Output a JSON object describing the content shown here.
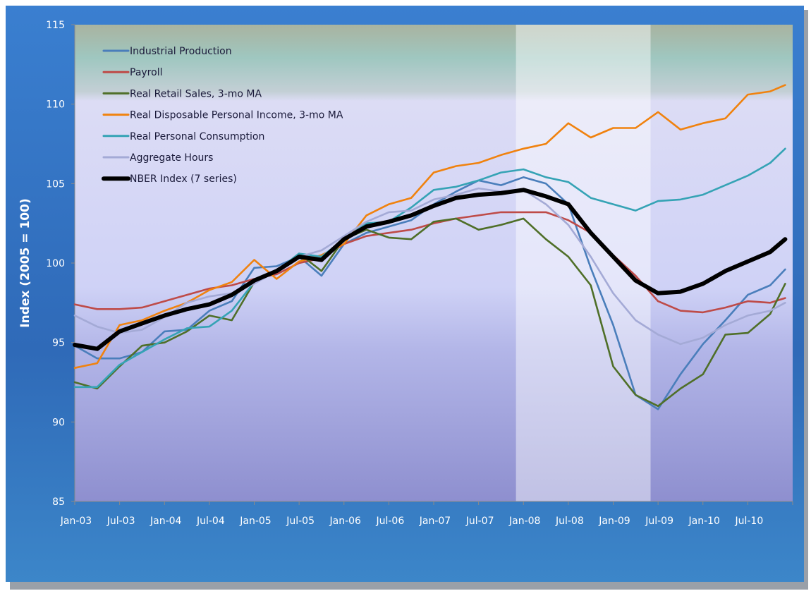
{
  "chart_data": {
    "type": "line",
    "title": "",
    "xlabel": "",
    "ylabel": "Index (2005 = 100)",
    "ylim": [
      85,
      115
    ],
    "yticks": [
      "85",
      "90",
      "95",
      "100",
      "105",
      "110",
      "115"
    ],
    "xlim": [
      "Jan-03",
      "Jan-11"
    ],
    "xtick_labels": [
      "Jan-03",
      "Jul-03",
      "Jan-04",
      "Jul-04",
      "Jan-05",
      "Jul-05",
      "Jan-06",
      "Jul-06",
      "Jan-07",
      "Jul-07",
      "Jan-08",
      "Jul-08",
      "Jan-09",
      "Jul-09",
      "Jan-10",
      "Jul-10"
    ],
    "grid": false,
    "legend_position": "top-left",
    "recession_shading": {
      "start": "Dec-07",
      "end": "Jun-09"
    },
    "x": [
      "Jan-03",
      "Apr-03",
      "Jul-03",
      "Oct-03",
      "Jan-04",
      "Apr-04",
      "Jul-04",
      "Oct-04",
      "Jan-05",
      "Apr-05",
      "Jul-05",
      "Oct-05",
      "Jan-06",
      "Apr-06",
      "Jul-06",
      "Oct-06",
      "Jan-07",
      "Apr-07",
      "Jul-07",
      "Oct-07",
      "Jan-08",
      "Apr-08",
      "Jul-08",
      "Oct-08",
      "Jan-09",
      "Apr-09",
      "Jul-09",
      "Oct-09",
      "Jan-10",
      "Apr-10",
      "Jul-10",
      "Oct-10",
      "Dec-10"
    ],
    "series": [
      {
        "name": "Industrial Production",
        "color": "#4a7ebb",
        "values": [
          94.8,
          94.0,
          94.0,
          94.4,
          95.7,
          95.8,
          97.0,
          97.6,
          99.7,
          99.8,
          100.4,
          99.2,
          101.2,
          101.9,
          102.3,
          102.7,
          103.7,
          104.5,
          105.2,
          104.9,
          105.4,
          105.0,
          103.7,
          99.7,
          96.1,
          91.7,
          90.8,
          93.0,
          94.9,
          96.4,
          98.0,
          98.6,
          99.6
        ]
      },
      {
        "name": "Payroll",
        "color": "#be4b48",
        "values": [
          97.4,
          97.1,
          97.1,
          97.2,
          97.6,
          98.0,
          98.4,
          98.6,
          99.0,
          99.3,
          100.0,
          100.3,
          101.2,
          101.7,
          101.9,
          102.1,
          102.5,
          102.8,
          103.0,
          103.2,
          103.2,
          103.2,
          102.7,
          101.9,
          100.5,
          99.2,
          97.6,
          97.0,
          96.9,
          97.2,
          97.6,
          97.5,
          97.8
        ]
      },
      {
        "name": "Real Retail Sales, 3-mo MA",
        "color": "#4f6f28",
        "values": [
          92.5,
          92.1,
          93.5,
          94.8,
          95.0,
          95.7,
          96.7,
          96.4,
          98.8,
          99.5,
          100.6,
          99.5,
          101.5,
          102.1,
          101.6,
          101.5,
          102.6,
          102.8,
          102.1,
          102.4,
          102.8,
          101.5,
          100.4,
          98.6,
          93.5,
          91.7,
          91.0,
          92.1,
          93.0,
          95.5,
          95.6,
          96.8,
          98.7
        ]
      },
      {
        "name": "Real Disposable Personal Income, 3-mo MA",
        "color": "#f0820e",
        "values": [
          93.4,
          93.7,
          96.1,
          96.4,
          97.0,
          97.5,
          98.3,
          98.8,
          100.2,
          99.0,
          100.1,
          100.5,
          101.2,
          103.0,
          103.7,
          104.1,
          105.7,
          106.1,
          106.3,
          106.8,
          107.2,
          107.5,
          108.8,
          107.9,
          108.5,
          108.5,
          109.5,
          108.4,
          108.8,
          109.1,
          110.6,
          110.8,
          111.2
        ]
      },
      {
        "name": "Real Personal Consumption",
        "color": "#35a3b5",
        "values": [
          92.2,
          92.2,
          93.6,
          94.4,
          95.2,
          95.9,
          96.0,
          97.0,
          98.8,
          99.5,
          100.6,
          100.4,
          101.5,
          102.5,
          102.6,
          103.5,
          104.6,
          104.8,
          105.2,
          105.7,
          105.9,
          105.4,
          105.1,
          104.1,
          103.7,
          103.3,
          103.9,
          104.0,
          104.3,
          104.9,
          105.5,
          106.3,
          107.2
        ]
      },
      {
        "name": "Aggregate Hours",
        "color": "#a4aad6",
        "values": [
          96.7,
          96.0,
          95.6,
          95.8,
          96.6,
          97.5,
          97.9,
          98.1,
          98.7,
          99.5,
          100.4,
          100.8,
          101.7,
          102.6,
          103.2,
          103.3,
          104.0,
          104.3,
          104.7,
          104.5,
          104.6,
          103.7,
          102.4,
          100.4,
          98.1,
          96.4,
          95.5,
          94.9,
          95.3,
          96.1,
          96.7,
          97.0,
          97.5
        ]
      },
      {
        "name": "NBER Index (7 series)",
        "color": "#000000",
        "values": [
          94.85,
          94.6,
          95.7,
          96.2,
          96.7,
          97.1,
          97.4,
          98.0,
          98.9,
          99.5,
          100.4,
          100.2,
          101.5,
          102.3,
          102.6,
          103.0,
          103.6,
          104.1,
          104.3,
          104.4,
          104.6,
          104.2,
          103.7,
          101.9,
          100.4,
          98.9,
          98.1,
          98.2,
          98.7,
          99.5,
          100.1,
          100.7,
          101.5
        ]
      }
    ]
  }
}
